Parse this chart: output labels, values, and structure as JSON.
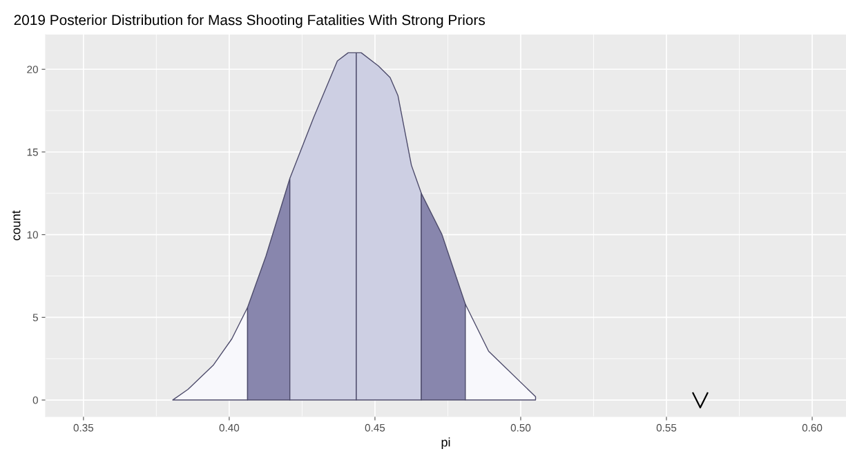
{
  "chart_data": {
    "type": "area",
    "title": "2019 Posterior Distribution for Mass Shooting Fatalities With Strong Priors",
    "xlabel": "pi",
    "ylabel": "count",
    "series": [
      {
        "color": "#f8f8fc",
        "x": [
          0.3806,
          0.3859,
          0.3945,
          0.4009,
          0.4063
        ],
        "values": [
          0,
          0.65,
          2.1,
          3.7,
          5.6
        ]
      },
      {
        "color": "#8886ad",
        "x": [
          0.4063,
          0.4126,
          0.4208
        ],
        "values": [
          5.6,
          8.7,
          13.4
        ]
      },
      {
        "color": "#cdcfe3",
        "x": [
          0.4208,
          0.429,
          0.4371,
          0.4408,
          0.4436
        ],
        "values": [
          13.4,
          17.1,
          20.5,
          21.0,
          21.0
        ]
      },
      {
        "color": "#cdcfe3",
        "x": [
          0.4436,
          0.4453,
          0.4512,
          0.4552,
          0.4579,
          0.4625,
          0.4659
        ],
        "values": [
          21.0,
          21.0,
          20.2,
          19.5,
          18.4,
          14.2,
          12.5
        ]
      },
      {
        "color": "#8886ad",
        "x": [
          0.4659,
          0.473,
          0.481
        ],
        "values": [
          12.5,
          10.0,
          5.8
        ]
      },
      {
        "color": "#f8f8fc",
        "x": [
          0.481,
          0.489,
          0.5051
        ],
        "values": [
          5.8,
          2.95,
          0.2
        ]
      },
      {
        "type": "scatter",
        "color": "#000000",
        "marker": "cross",
        "x": [
          0.5616
        ],
        "values": [
          0
        ]
      }
    ],
    "xlim": [
      0.337,
      0.6116
    ],
    "ylim": [
      -1.0,
      22.1
    ],
    "xticks": [
      {
        "value": 0.35,
        "label": "0.35"
      },
      {
        "value": 0.4,
        "label": "0.40"
      },
      {
        "value": 0.45,
        "label": "0.45"
      },
      {
        "value": 0.5,
        "label": "0.50"
      },
      {
        "value": 0.55,
        "label": "0.55"
      },
      {
        "value": 0.6,
        "label": "0.60"
      }
    ],
    "yticks": [
      0,
      5,
      10,
      15,
      20
    ],
    "grid": true
  }
}
